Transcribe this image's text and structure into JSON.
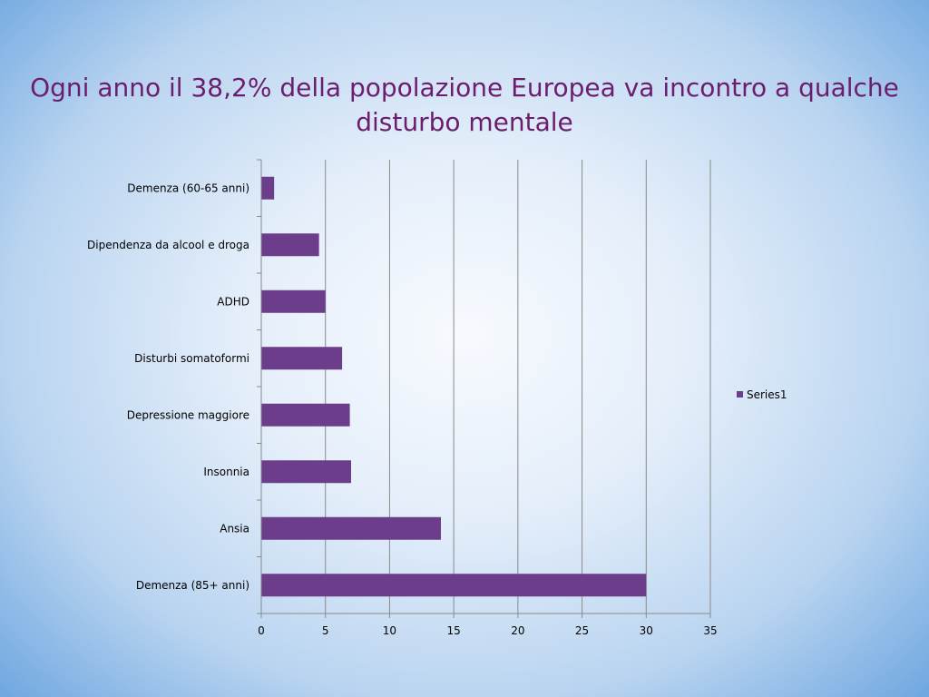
{
  "slide": {
    "title": "Ogni anno il 38,2% della popolazione Europea va incontro a qualche disturbo mentale"
  },
  "chart_data": {
    "type": "bar",
    "orientation": "horizontal",
    "categories": [
      "Demenza (60-65 anni)",
      "Dipendenza da alcool e droga",
      "ADHD",
      "Disturbi somatoformi",
      "Depressione maggiore",
      "Insonnia",
      "Ansia",
      "Demenza (85+ anni)"
    ],
    "series": [
      {
        "name": "Series1",
        "values": [
          1,
          4.5,
          5,
          6.3,
          6.9,
          7,
          14,
          30
        ],
        "color": "#6b3d8a"
      }
    ],
    "xlim": [
      0,
      35
    ],
    "xticks": [
      0,
      5,
      10,
      15,
      20,
      25,
      30,
      35
    ],
    "grid": "vertical",
    "legend_position": "right"
  }
}
